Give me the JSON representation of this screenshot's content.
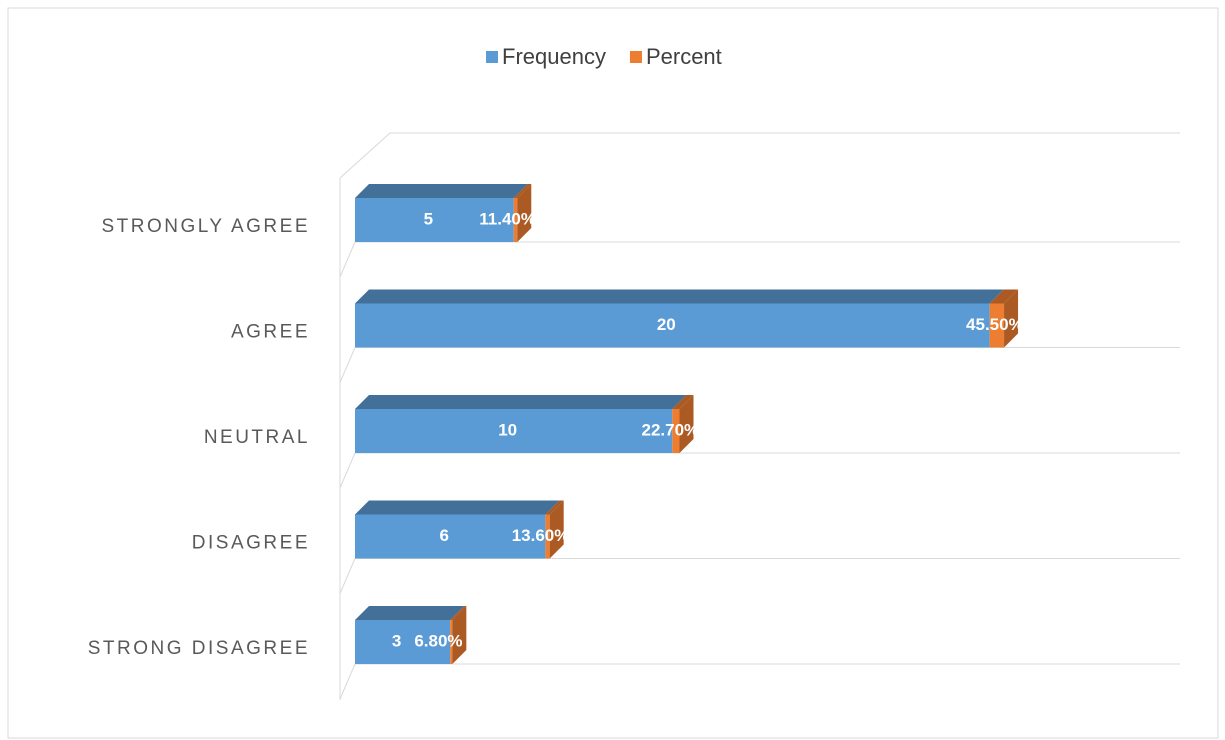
{
  "chart_data": {
    "type": "bar3d-stacked-horizontal",
    "categories": [
      "STRONGLY AGREE",
      "AGREE",
      "NEUTRAL",
      "DISAGREE",
      "STRONG DISAGREE"
    ],
    "series": [
      {
        "name": "Frequency",
        "color": "#5b9bd5",
        "values": [
          5,
          20,
          10,
          6,
          3
        ]
      },
      {
        "name": "Percent",
        "color": "#ed7d31",
        "values": [
          0.114,
          0.455,
          0.227,
          0.136,
          0.068
        ],
        "value_labels": [
          "11.40%",
          "45.50%",
          "22.70%",
          "13.60%",
          "6.80%"
        ]
      }
    ],
    "xlim": [
      0,
      26
    ],
    "grid": true,
    "legend": "top"
  }
}
